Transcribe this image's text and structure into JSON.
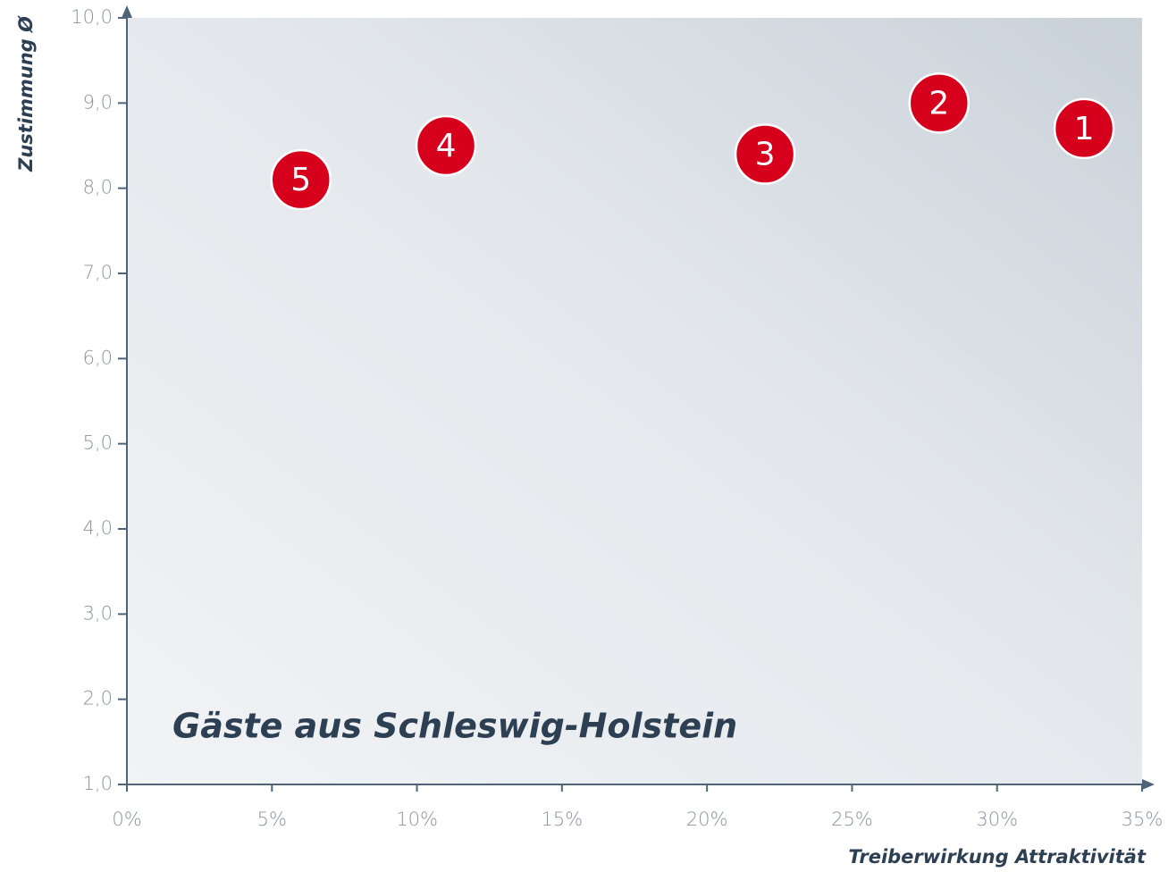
{
  "chart_data": {
    "type": "scatter",
    "annotation": "Gäste aus Schleswig-Holstein",
    "x_label": "Treiberwirkung Attraktivität",
    "y_label": "Zustimmung Ø",
    "series": [
      {
        "color": "#d6001c",
        "x": [
          33,
          28,
          22,
          11,
          6
        ],
        "values": [
          8.7,
          9.0,
          8.4,
          8.5,
          8.1
        ],
        "labels": [
          "1",
          "2",
          "3",
          "4",
          "5"
        ]
      }
    ],
    "xlim": [
      0,
      35
    ],
    "xticks": [
      {
        "value": 0,
        "label": "0%"
      },
      {
        "value": 5,
        "label": "5%"
      },
      {
        "value": 10,
        "label": "10%"
      },
      {
        "value": 15,
        "label": "15%"
      },
      {
        "value": 20,
        "label": "20%"
      },
      {
        "value": 25,
        "label": "25%"
      },
      {
        "value": 30,
        "label": "30%"
      },
      {
        "value": 35,
        "label": "35%"
      }
    ],
    "ylim": [
      1,
      10
    ],
    "yticks": [
      {
        "value": 1,
        "label": "1,0"
      },
      {
        "value": 2,
        "label": "2,0"
      },
      {
        "value": 3,
        "label": "3,0"
      },
      {
        "value": 4,
        "label": "4,0"
      },
      {
        "value": 5,
        "label": "5,0"
      },
      {
        "value": 6,
        "label": "6,0"
      },
      {
        "value": 7,
        "label": "7,0"
      },
      {
        "value": 8,
        "label": "8,0"
      },
      {
        "value": 9,
        "label": "9,0"
      },
      {
        "value": 10,
        "label": "10,0"
      }
    ]
  }
}
